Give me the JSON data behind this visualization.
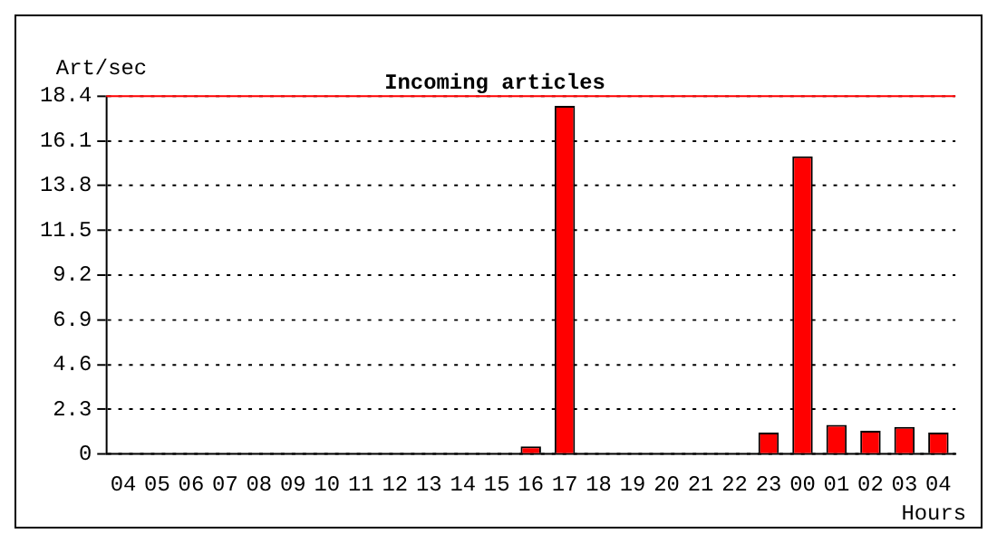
{
  "chart_data": {
    "type": "bar",
    "title": "Incoming articles",
    "ylabel": "Art/sec",
    "xlabel": "Hours",
    "categories": [
      "04",
      "05",
      "06",
      "07",
      "08",
      "09",
      "10",
      "11",
      "12",
      "13",
      "14",
      "15",
      "16",
      "17",
      "18",
      "19",
      "20",
      "21",
      "22",
      "23",
      "00",
      "01",
      "02",
      "03",
      "04"
    ],
    "values": [
      0,
      0,
      0,
      0,
      0,
      0,
      0,
      0,
      0,
      0,
      0,
      0,
      0.4,
      17.9,
      0,
      0,
      0,
      0,
      0,
      1.1,
      15.3,
      1.5,
      1.2,
      1.4,
      1.1
    ],
    "color": "#ff0000",
    "ylim": [
      0,
      18.4
    ],
    "yticks": [
      0,
      2.3,
      4.6,
      6.9,
      9.2,
      11.5,
      13.8,
      16.1,
      18.4
    ],
    "grid": "y",
    "ref_lines": [
      {
        "axis": "y",
        "value": 18.4,
        "color": "#ff0000"
      }
    ]
  }
}
